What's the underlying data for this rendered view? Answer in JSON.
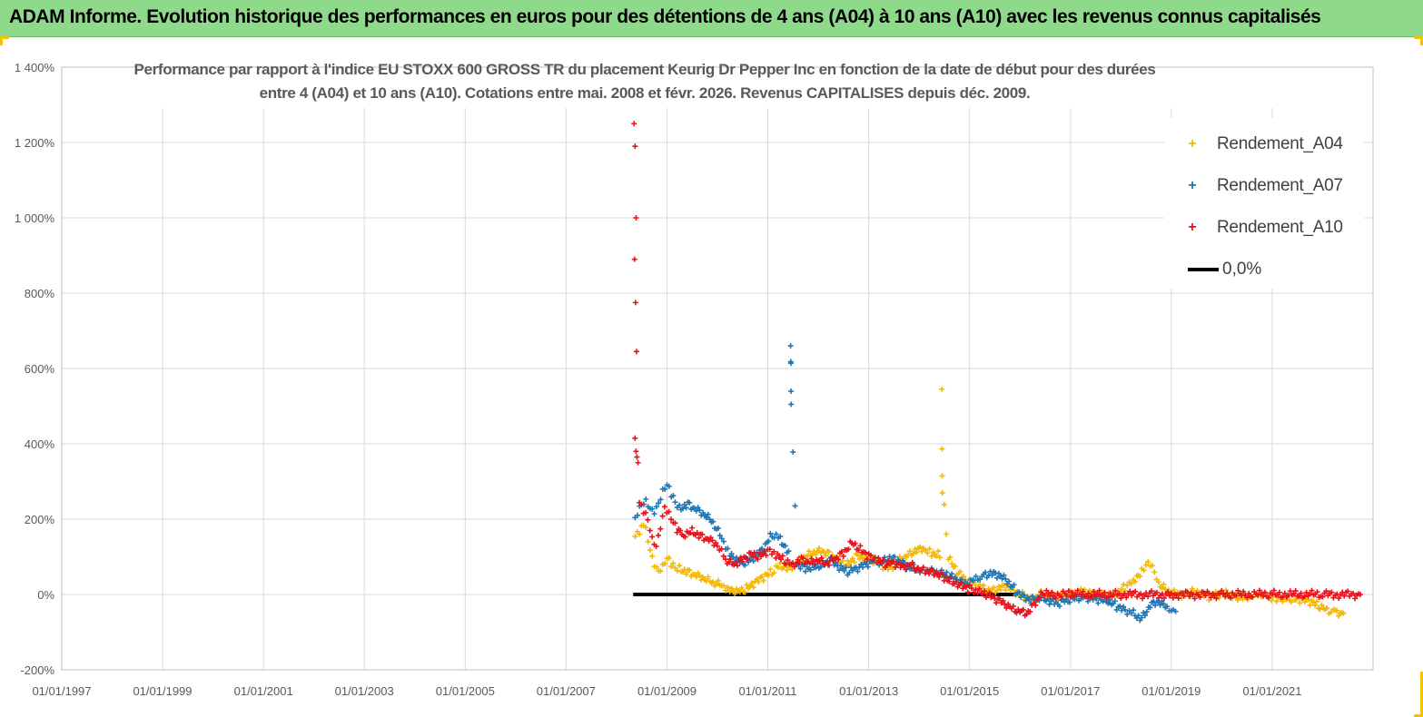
{
  "header": {
    "title": "ADAM Informe. Evolution historique des performances en euros pour des détentions de 4 ans (A04) à 10 ans (A10) avec les revenus connus capitalisés"
  },
  "colors": {
    "banner": "#8ed98a",
    "accent_corner": "#f5c400",
    "A04": "#f5b800",
    "A07": "#1f77b4",
    "A10": "#e8101a",
    "zero_line": "#000000",
    "grid": "#d9d9d9",
    "axis_text": "#595959"
  },
  "chart_data": {
    "type": "scatter",
    "title_line1": "Performance par rapport à l'indice EU STOXX 600 GROSS TR  du placement Keurig Dr Pepper Inc en fonction de la date de début pour des durées",
    "title_line2": "entre 4 (A04) et 10 ans (A10). Cotations entre mai. 2008 et févr. 2026. Revenus CAPITALISES depuis déc. 2009.",
    "xlabel": "",
    "ylabel": "",
    "x_ticks": [
      "01/01/1997",
      "01/01/1999",
      "01/01/2001",
      "01/01/2003",
      "01/01/2005",
      "01/01/2007",
      "01/01/2009",
      "01/01/2011",
      "01/01/2013",
      "01/01/2015",
      "01/01/2017",
      "01/01/2019",
      "01/01/2021"
    ],
    "xlim": [
      "1997-01-01",
      "2023-01-01"
    ],
    "y_ticks": [
      "-200%",
      "0%",
      "200%",
      "400%",
      "600%",
      "800%",
      "1 000%",
      "1 200%",
      "1 400%"
    ],
    "ylim": [
      -200,
      1400
    ],
    "grid": true,
    "legend_position": "top-right",
    "legend": [
      "Rendement_A04",
      "Rendement_A07",
      "Rendement_A10",
      "0,0%"
    ],
    "series": [
      {
        "name": "Rendement_A04",
        "marker": "+",
        "points": [
          [
            "2008-05-15",
            150
          ],
          [
            "2008-06-15",
            165
          ],
          [
            "2008-07-15",
            185
          ],
          [
            "2008-08-01",
            175
          ],
          [
            "2008-09-01",
            120
          ],
          [
            "2008-10-01",
            80
          ],
          [
            "2008-11-01",
            60
          ],
          [
            "2008-12-01",
            70
          ],
          [
            "2009-01-01",
            95
          ],
          [
            "2009-02-01",
            85
          ],
          [
            "2009-03-01",
            75
          ],
          [
            "2009-04-01",
            70
          ],
          [
            "2009-06-01",
            60
          ],
          [
            "2009-08-01",
            50
          ],
          [
            "2009-10-01",
            40
          ],
          [
            "2009-12-01",
            30
          ],
          [
            "2010-02-01",
            25
          ],
          [
            "2010-04-01",
            15
          ],
          [
            "2010-06-01",
            10
          ],
          [
            "2010-08-01",
            15
          ],
          [
            "2010-10-01",
            30
          ],
          [
            "2010-12-01",
            45
          ],
          [
            "2011-02-01",
            60
          ],
          [
            "2011-04-01",
            80
          ],
          [
            "2011-06-01",
            70
          ],
          [
            "2011-08-01",
            85
          ],
          [
            "2011-10-01",
            100
          ],
          [
            "2011-12-01",
            110
          ],
          [
            "2012-02-01",
            115
          ],
          [
            "2012-04-01",
            105
          ],
          [
            "2012-06-01",
            90
          ],
          [
            "2012-08-01",
            80
          ],
          [
            "2012-10-01",
            100
          ],
          [
            "2012-12-01",
            95
          ],
          [
            "2013-02-01",
            90
          ],
          [
            "2013-04-01",
            80
          ],
          [
            "2013-06-01",
            70
          ],
          [
            "2013-08-01",
            90
          ],
          [
            "2013-10-01",
            100
          ],
          [
            "2013-12-01",
            115
          ],
          [
            "2014-02-01",
            120
          ],
          [
            "2014-04-01",
            110
          ],
          [
            "2014-06-01",
            105
          ],
          [
            "2014-08-01",
            95
          ],
          [
            "2014-10-01",
            60
          ],
          [
            "2014-12-01",
            40
          ],
          [
            "2015-02-01",
            30
          ],
          [
            "2015-04-01",
            20
          ],
          [
            "2015-06-01",
            10
          ],
          [
            "2015-08-01",
            15
          ],
          [
            "2015-10-01",
            20
          ],
          [
            "2015-12-01",
            5
          ],
          [
            "2016-02-01",
            -5
          ],
          [
            "2016-04-01",
            -10
          ],
          [
            "2016-06-01",
            0
          ],
          [
            "2016-08-01",
            -5
          ],
          [
            "2016-10-01",
            -8
          ],
          [
            "2016-12-01",
            0
          ],
          [
            "2017-02-01",
            5
          ],
          [
            "2017-04-01",
            10
          ],
          [
            "2017-06-01",
            5
          ],
          [
            "2017-08-01",
            0
          ],
          [
            "2017-10-01",
            -5
          ],
          [
            "2017-12-01",
            0
          ],
          [
            "2018-02-01",
            20
          ],
          [
            "2018-04-01",
            40
          ],
          [
            "2018-06-01",
            60
          ],
          [
            "2018-07-01",
            75
          ],
          [
            "2018-08-01",
            80
          ],
          [
            "2018-09-01",
            60
          ],
          [
            "2018-10-01",
            30
          ],
          [
            "2018-12-01",
            10
          ],
          [
            "2019-02-01",
            5
          ],
          [
            "2019-04-01",
            0
          ],
          [
            "2019-06-01",
            5
          ],
          [
            "2019-08-01",
            0
          ],
          [
            "2019-10-01",
            -5
          ],
          [
            "2019-12-01",
            0
          ],
          [
            "2020-02-01",
            5
          ],
          [
            "2020-04-01",
            -5
          ],
          [
            "2020-06-01",
            -10
          ],
          [
            "2020-08-01",
            -5
          ],
          [
            "2020-10-01",
            0
          ],
          [
            "2020-12-01",
            -5
          ],
          [
            "2021-02-01",
            -10
          ],
          [
            "2021-04-01",
            -8
          ],
          [
            "2021-06-01",
            -12
          ],
          [
            "2021-08-01",
            -15
          ],
          [
            "2021-10-01",
            -20
          ],
          [
            "2021-12-01",
            -30
          ],
          [
            "2022-02-01",
            -40
          ],
          [
            "2022-04-01",
            -45
          ],
          [
            "2022-06-01",
            -50
          ],
          [
            "2014-06-15",
            545
          ],
          [
            "2014-06-16",
            380
          ],
          [
            "2014-06-17",
            305
          ],
          [
            "2014-06-18",
            270
          ]
        ]
      },
      {
        "name": "Rendement_A07",
        "marker": "+",
        "points": [
          [
            "2008-05-15",
            200
          ],
          [
            "2008-06-01",
            215
          ],
          [
            "2008-07-01",
            240
          ],
          [
            "2008-08-01",
            250
          ],
          [
            "2008-09-01",
            230
          ],
          [
            "2008-10-01",
            220
          ],
          [
            "2008-11-01",
            240
          ],
          [
            "2008-12-01",
            270
          ],
          [
            "2009-01-01",
            290
          ],
          [
            "2009-02-01",
            270
          ],
          [
            "2009-03-01",
            250
          ],
          [
            "2009-04-01",
            230
          ],
          [
            "2009-06-01",
            240
          ],
          [
            "2009-08-01",
            225
          ],
          [
            "2009-10-01",
            210
          ],
          [
            "2009-12-01",
            190
          ],
          [
            "2010-02-01",
            150
          ],
          [
            "2010-04-01",
            110
          ],
          [
            "2010-06-01",
            90
          ],
          [
            "2010-08-01",
            85
          ],
          [
            "2010-10-01",
            100
          ],
          [
            "2010-12-01",
            120
          ],
          [
            "2011-02-01",
            160
          ],
          [
            "2011-04-01",
            150
          ],
          [
            "2011-06-01",
            110
          ],
          [
            "2011-08-01",
            80
          ],
          [
            "2011-10-01",
            70
          ],
          [
            "2011-12-01",
            75
          ],
          [
            "2012-02-01",
            80
          ],
          [
            "2012-04-01",
            90
          ],
          [
            "2012-06-01",
            70
          ],
          [
            "2012-08-01",
            60
          ],
          [
            "2012-10-01",
            70
          ],
          [
            "2012-12-01",
            80
          ],
          [
            "2013-02-01",
            90
          ],
          [
            "2013-04-01",
            85
          ],
          [
            "2013-06-01",
            95
          ],
          [
            "2013-08-01",
            90
          ],
          [
            "2013-10-01",
            75
          ],
          [
            "2013-12-01",
            70
          ],
          [
            "2014-02-01",
            65
          ],
          [
            "2014-04-01",
            60
          ],
          [
            "2014-06-01",
            55
          ],
          [
            "2014-08-01",
            50
          ],
          [
            "2014-10-01",
            40
          ],
          [
            "2014-12-01",
            30
          ],
          [
            "2015-02-01",
            40
          ],
          [
            "2015-04-01",
            50
          ],
          [
            "2015-06-01",
            55
          ],
          [
            "2015-08-01",
            50
          ],
          [
            "2015-10-01",
            35
          ],
          [
            "2015-12-01",
            10
          ],
          [
            "2016-02-01",
            -5
          ],
          [
            "2016-04-01",
            -15
          ],
          [
            "2016-06-01",
            -10
          ],
          [
            "2016-08-01",
            -20
          ],
          [
            "2016-10-01",
            -25
          ],
          [
            "2016-12-01",
            -15
          ],
          [
            "2017-02-01",
            -10
          ],
          [
            "2017-04-01",
            -5
          ],
          [
            "2017-06-01",
            -10
          ],
          [
            "2017-08-01",
            -15
          ],
          [
            "2017-10-01",
            -20
          ],
          [
            "2017-12-01",
            -30
          ],
          [
            "2018-02-01",
            -40
          ],
          [
            "2018-04-01",
            -50
          ],
          [
            "2018-06-01",
            -65
          ],
          [
            "2018-08-01",
            -30
          ],
          [
            "2018-10-01",
            -20
          ],
          [
            "2018-12-01",
            -35
          ],
          [
            "2019-01-01",
            -40
          ],
          [
            "2019-02-01",
            -45
          ],
          [
            "2011-06-15",
            660
          ],
          [
            "2011-06-16",
            620
          ],
          [
            "2011-06-17",
            615
          ],
          [
            "2011-06-18",
            535
          ],
          [
            "2011-06-19",
            505
          ]
        ]
      },
      {
        "name": "Rendement_A10",
        "marker": "+",
        "points": [
          [
            "2008-05-10",
            1250
          ],
          [
            "2008-05-12",
            1190
          ],
          [
            "2008-05-14",
            1000
          ],
          [
            "2008-05-16",
            890
          ],
          [
            "2008-05-18",
            775
          ],
          [
            "2008-05-20",
            645
          ],
          [
            "2008-05-22",
            415
          ],
          [
            "2008-05-24",
            380
          ],
          [
            "2008-05-26",
            365
          ],
          [
            "2008-05-28",
            350
          ],
          [
            "2008-06-15",
            240
          ],
          [
            "2008-07-15",
            220
          ],
          [
            "2008-08-15",
            200
          ],
          [
            "2008-09-15",
            150
          ],
          [
            "2008-10-15",
            130
          ],
          [
            "2008-11-15",
            180
          ],
          [
            "2008-12-15",
            230
          ],
          [
            "2009-01-15",
            210
          ],
          [
            "2009-02-15",
            190
          ],
          [
            "2009-03-15",
            175
          ],
          [
            "2009-05-01",
            160
          ],
          [
            "2009-07-01",
            170
          ],
          [
            "2009-09-01",
            155
          ],
          [
            "2009-11-01",
            145
          ],
          [
            "2010-01-01",
            130
          ],
          [
            "2010-03-01",
            90
          ],
          [
            "2010-05-01",
            80
          ],
          [
            "2010-07-01",
            95
          ],
          [
            "2010-09-01",
            110
          ],
          [
            "2010-11-01",
            100
          ],
          [
            "2011-01-01",
            115
          ],
          [
            "2011-03-01",
            105
          ],
          [
            "2011-05-01",
            90
          ],
          [
            "2011-07-01",
            80
          ],
          [
            "2011-09-01",
            95
          ],
          [
            "2011-11-01",
            85
          ],
          [
            "2012-01-01",
            90
          ],
          [
            "2012-03-01",
            80
          ],
          [
            "2012-05-01",
            95
          ],
          [
            "2012-07-01",
            110
          ],
          [
            "2012-09-01",
            140
          ],
          [
            "2012-11-01",
            120
          ],
          [
            "2013-01-01",
            100
          ],
          [
            "2013-03-01",
            90
          ],
          [
            "2013-05-01",
            80
          ],
          [
            "2013-07-01",
            85
          ],
          [
            "2013-09-01",
            75
          ],
          [
            "2013-11-01",
            80
          ],
          [
            "2014-01-01",
            65
          ],
          [
            "2014-03-01",
            60
          ],
          [
            "2014-05-01",
            55
          ],
          [
            "2014-07-01",
            45
          ],
          [
            "2014-09-01",
            35
          ],
          [
            "2014-11-01",
            25
          ],
          [
            "2015-01-01",
            15
          ],
          [
            "2015-03-01",
            5
          ],
          [
            "2015-05-01",
            0
          ],
          [
            "2015-07-01",
            -10
          ],
          [
            "2015-09-01",
            -20
          ],
          [
            "2015-11-01",
            -35
          ],
          [
            "2016-01-01",
            -45
          ],
          [
            "2016-03-01",
            -50
          ],
          [
            "2016-06-01",
            0
          ],
          [
            "2017-01-01",
            0
          ],
          [
            "2018-01-01",
            0
          ],
          [
            "2019-01-01",
            0
          ],
          [
            "2020-01-01",
            0
          ],
          [
            "2021-01-01",
            0
          ],
          [
            "2022-01-01",
            0
          ],
          [
            "2022-10-01",
            0
          ]
        ]
      }
    ],
    "zero_line": {
      "name": "0,0%",
      "x_start": "2008-05-01",
      "x_end": "2015-12-01",
      "y": 0
    }
  }
}
